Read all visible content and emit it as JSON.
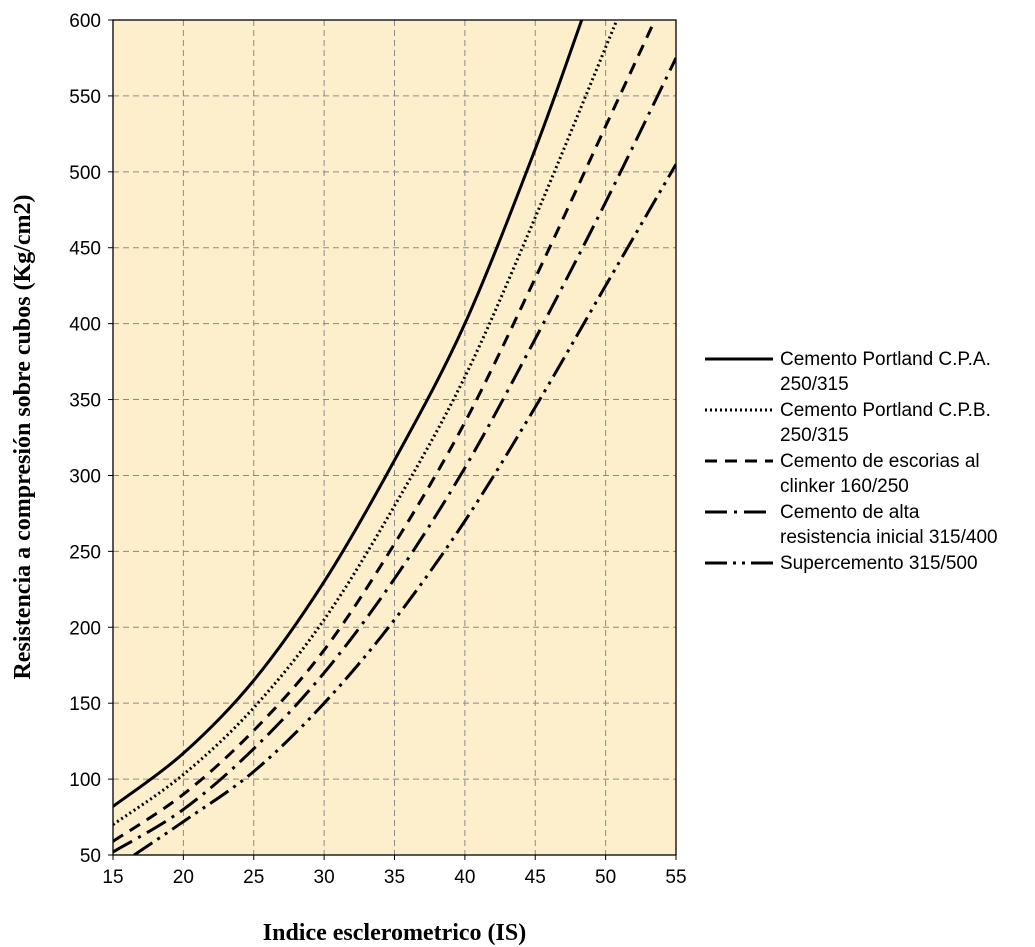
{
  "chart_data": {
    "type": "line",
    "title": "",
    "xlabel": "Indice esclerometrico (IS)",
    "ylabel": "Resistencia a compresión sobre cubos (Kg/cm2)",
    "xlim": [
      15,
      55
    ],
    "ylim": [
      50,
      600
    ],
    "xticks": [
      "15",
      "20",
      "25",
      "30",
      "35",
      "40",
      "45",
      "50",
      "55"
    ],
    "yticks": [
      "50",
      "100",
      "150",
      "200",
      "250",
      "300",
      "350",
      "400",
      "450",
      "500",
      "550",
      "600"
    ],
    "grid": true,
    "grid_style": "dashed",
    "plot_background": "#FDEFCB",
    "legend_position": "right",
    "series": [
      {
        "name": "Cemento Portland C.P.A. 250/315",
        "line_style": "solid",
        "color": "#000000",
        "x": [
          15,
          20,
          25,
          30,
          35,
          40,
          45,
          48.3
        ],
        "y": [
          82,
          117,
          165,
          230,
          310,
          400,
          515,
          600
        ]
      },
      {
        "name": "Cemento Portland C.P.B. 250/315",
        "line_style": "dotted",
        "color": "#000000",
        "x": [
          15,
          20,
          25,
          30,
          35,
          40,
          45,
          50.8
        ],
        "y": [
          70,
          103,
          147,
          205,
          280,
          365,
          470,
          600
        ]
      },
      {
        "name": "Cemento de escorias al clinker 160/250",
        "line_style": "dashed",
        "color": "#000000",
        "x": [
          15,
          20,
          25,
          30,
          35,
          40,
          45,
          50,
          53.5
        ],
        "y": [
          59,
          90,
          132,
          185,
          255,
          335,
          430,
          530,
          600
        ]
      },
      {
        "name": "Cemento de alta resistencia inicial 315/400",
        "line_style": "dash-dot",
        "color": "#000000",
        "x": [
          15,
          20,
          25,
          30,
          35,
          40,
          45,
          50,
          55
        ],
        "y": [
          52,
          80,
          120,
          170,
          232,
          305,
          390,
          480,
          575
        ]
      },
      {
        "name": "Supercemento 315/500",
        "line_style": "dash-dot-dot",
        "color": "#000000",
        "x": [
          16.5,
          20,
          25,
          30,
          35,
          40,
          45,
          50,
          55
        ],
        "y": [
          50,
          72,
          105,
          150,
          205,
          270,
          345,
          425,
          505
        ]
      }
    ],
    "legend": [
      {
        "line_style": "solid",
        "lines": [
          "Cemento Portland C.P.A.",
          "250/315"
        ]
      },
      {
        "line_style": "dotted",
        "lines": [
          "Cemento Portland C.P.B.",
          "250/315"
        ]
      },
      {
        "line_style": "dashed",
        "lines": [
          "Cemento de escorias al",
          "clinker 160/250"
        ]
      },
      {
        "line_style": "dash-dot",
        "lines": [
          "Cemento de alta",
          "resistencia inicial 315/400"
        ]
      },
      {
        "line_style": "dash-dot-dot",
        "lines": [
          "Supercemento 315/500"
        ]
      }
    ]
  }
}
